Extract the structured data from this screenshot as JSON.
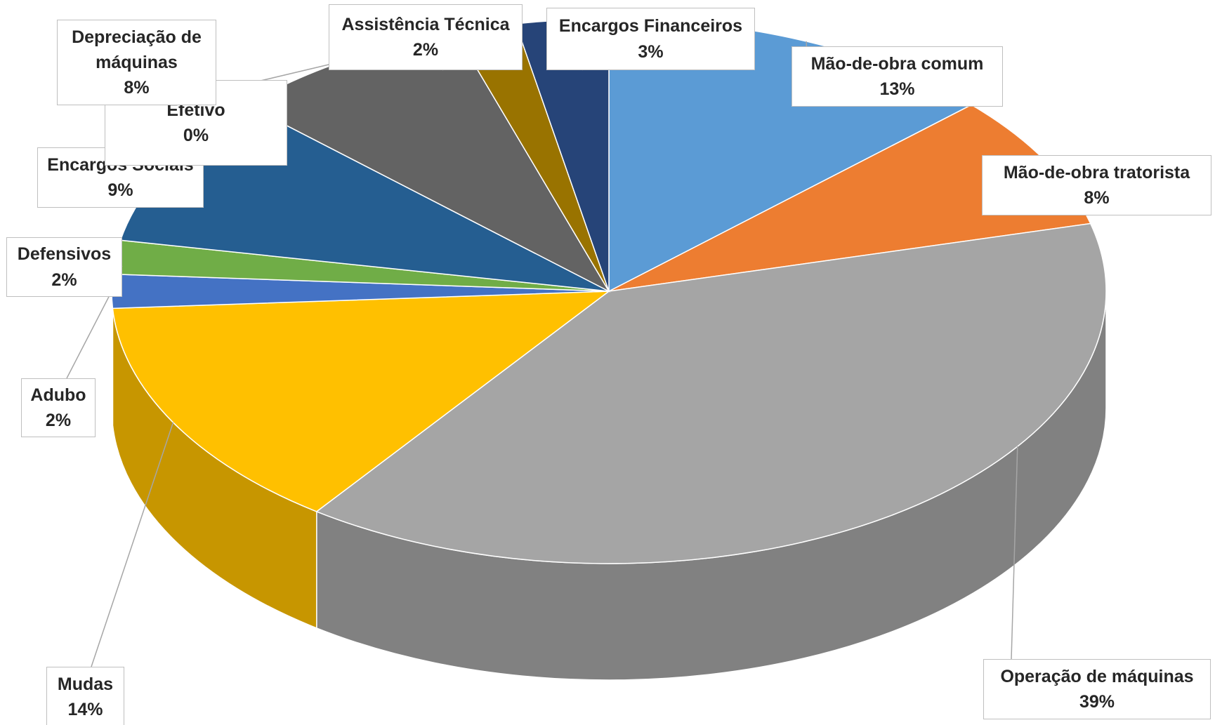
{
  "chart_data": {
    "type": "pie3d",
    "categories": [
      "Mão-de-obra comum",
      "Mão-de-obra tratorista",
      "Operação de máquinas",
      "Mudas",
      "Adubo",
      "Defensivos",
      "Encargos Sociais",
      "Efetivo",
      "Depreciação de máquinas",
      "Assistência  Técnica",
      "Encargos Financeiros"
    ],
    "values": [
      13,
      8,
      39,
      14,
      2,
      2,
      9,
      0,
      8,
      2,
      3
    ],
    "value_labels": [
      "13%",
      "8%",
      "39%",
      "14%",
      "2%",
      "2%",
      "9%",
      "0%",
      "8%",
      "2%",
      "3%"
    ],
    "colors": [
      "#5b9bd5",
      "#ed7d31",
      "#a5a5a5",
      "#ffc000",
      "#4472c4",
      "#70ad47",
      "#255e91",
      "#9e480e",
      "#636363",
      "#997300",
      "#264478"
    ]
  }
}
